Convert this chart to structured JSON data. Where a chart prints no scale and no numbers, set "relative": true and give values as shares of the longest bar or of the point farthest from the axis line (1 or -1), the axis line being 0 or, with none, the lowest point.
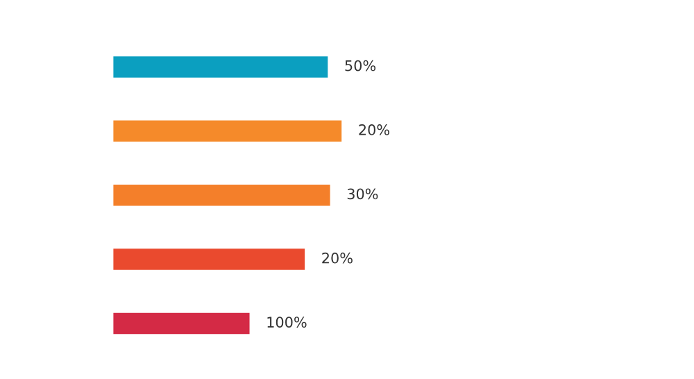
{
  "chart_data": {
    "type": "bar",
    "orientation": "horizontal",
    "relative": true,
    "categories": [
      null,
      null,
      null,
      null,
      null
    ],
    "values": [
      0.94,
      1,
      0.95,
      0.84,
      0.6
    ],
    "colors": [
      "#0b9fc0",
      "#f58a2a",
      "#f47f2a",
      "#ea4a2e",
      "#d42a45"
    ],
    "annotations": [
      "50%",
      "20%",
      "30%",
      "20%",
      "100%"
    ]
  }
}
